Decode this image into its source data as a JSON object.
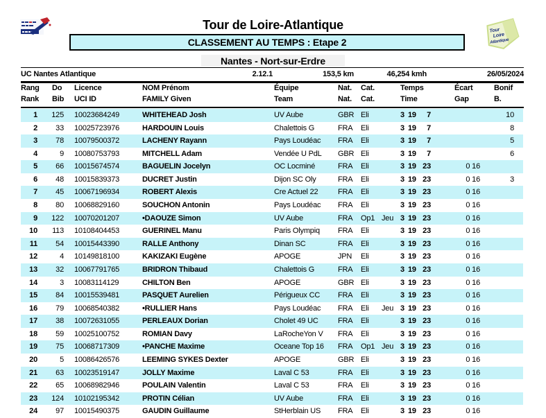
{
  "colors": {
    "accent_cyan": "#c7f3f9",
    "logo_navy": "#1b2f7e",
    "logo_red": "#c0242c",
    "logo_green": "#cadd8a"
  },
  "header": {
    "title": "Tour de Loire-Atlantique",
    "banner": "CLASSEMENT AU TEMPS : Etape 2",
    "stage": "Nantes - Nort-sur-Erdre",
    "organizer": "UC Nantes Atlantique",
    "code": "2.12.1",
    "distance": "153,5 km",
    "speed": "46,254 kmh",
    "date": "26/05/2024",
    "logo_left_icon": "federation-flag-pen-icon",
    "logo_right": {
      "icon": "race-map-icon",
      "line1": "Tour",
      "line2": "Loire",
      "line3": "Atlantique"
    }
  },
  "table": {
    "columns": [
      {
        "l1": "Rang",
        "l2": "Rank"
      },
      {
        "l1": "Do",
        "l2": "Bib"
      },
      {
        "l1": "Licence",
        "l2": "UCI ID"
      },
      {
        "l1": "NOM Prénom",
        "l2": "FAMILY Given"
      },
      {
        "l1": "Équipe",
        "l2": "Team"
      },
      {
        "l1": "Nat.",
        "l2": "Nat."
      },
      {
        "l1": "Cat.",
        "l2": "Cat."
      },
      {
        "l1": "Temps",
        "l2": "Time"
      },
      {
        "l1": "Écart",
        "l2": "Gap"
      },
      {
        "l1": "Bonif",
        "l2": "B."
      }
    ],
    "rows": [
      {
        "rank": "1",
        "bib": "125",
        "licence": "10023684249",
        "name": "WHITEHEAD Josh",
        "team": "UV Aube",
        "nat": "GBR",
        "cat": "Eli",
        "cat2": "",
        "h": "3",
        "m": "19",
        "s": "7",
        "gap": "",
        "bonif": "10"
      },
      {
        "rank": "2",
        "bib": "33",
        "licence": "10025723976",
        "name": "HARDOUIN Louis",
        "team": "Chalettois G",
        "nat": "FRA",
        "cat": "Eli",
        "cat2": "",
        "h": "3",
        "m": "19",
        "s": "7",
        "gap": "",
        "bonif": "8"
      },
      {
        "rank": "3",
        "bib": "78",
        "licence": "10079500372",
        "name": "LACHENY Rayann",
        "team": "Pays Loudéac",
        "nat": "FRA",
        "cat": "Eli",
        "cat2": "",
        "h": "3",
        "m": "19",
        "s": "7",
        "gap": "",
        "bonif": "5"
      },
      {
        "rank": "4",
        "bib": "9",
        "licence": "10080753793",
        "name": "MITCHELL Adam",
        "team": "Vendée U PdL",
        "nat": "GBR",
        "cat": "Eli",
        "cat2": "",
        "h": "3",
        "m": "19",
        "s": "7",
        "gap": "",
        "bonif": "6"
      },
      {
        "rank": "5",
        "bib": "66",
        "licence": "10015674574",
        "name": "BAGUELIN Jocelyn",
        "team": "OC Locminé",
        "nat": "FRA",
        "cat": "Eli",
        "cat2": "",
        "h": "3",
        "m": "19",
        "s": "23",
        "gap": "0 16",
        "bonif": ""
      },
      {
        "rank": "6",
        "bib": "48",
        "licence": "10015839373",
        "name": "DUCRET Justin",
        "team": "Dijon SC Oly",
        "nat": "FRA",
        "cat": "Eli",
        "cat2": "",
        "h": "3",
        "m": "19",
        "s": "23",
        "gap": "0 16",
        "bonif": "3"
      },
      {
        "rank": "7",
        "bib": "45",
        "licence": "10067196934",
        "name": "ROBERT Alexis",
        "team": "Cre Actuel 22",
        "nat": "FRA",
        "cat": "Eli",
        "cat2": "",
        "h": "3",
        "m": "19",
        "s": "23",
        "gap": "0 16",
        "bonif": ""
      },
      {
        "rank": "8",
        "bib": "80",
        "licence": "10068829160",
        "name": "SOUCHON Antonin",
        "team": "Pays Loudéac",
        "nat": "FRA",
        "cat": "Eli",
        "cat2": "",
        "h": "3",
        "m": "19",
        "s": "23",
        "gap": "0 16",
        "bonif": ""
      },
      {
        "rank": "9",
        "bib": "122",
        "licence": "10070201207",
        "name": "•DAOUZE Simon",
        "team": "UV Aube",
        "nat": "FRA",
        "cat": "Op1",
        "cat2": "Jeu",
        "h": "3",
        "m": "19",
        "s": "23",
        "gap": "0 16",
        "bonif": ""
      },
      {
        "rank": "10",
        "bib": "113",
        "licence": "10108404453",
        "name": "GUERINEL Manu",
        "team": "Paris Olympiq",
        "nat": "FRA",
        "cat": "Eli",
        "cat2": "",
        "h": "3",
        "m": "19",
        "s": "23",
        "gap": "0 16",
        "bonif": ""
      },
      {
        "rank": "11",
        "bib": "54",
        "licence": "10015443390",
        "name": "RALLE Anthony",
        "team": "Dinan SC",
        "nat": "FRA",
        "cat": "Eli",
        "cat2": "",
        "h": "3",
        "m": "19",
        "s": "23",
        "gap": "0 16",
        "bonif": ""
      },
      {
        "rank": "12",
        "bib": "4",
        "licence": "10149818100",
        "name": "KAKIZAKI Eugène",
        "team": "APOGE",
        "nat": "JPN",
        "cat": "Eli",
        "cat2": "",
        "h": "3",
        "m": "19",
        "s": "23",
        "gap": "0 16",
        "bonif": ""
      },
      {
        "rank": "13",
        "bib": "32",
        "licence": "10067791765",
        "name": "BRIDRON Thibaud",
        "team": "Chalettois G",
        "nat": "FRA",
        "cat": "Eli",
        "cat2": "",
        "h": "3",
        "m": "19",
        "s": "23",
        "gap": "0 16",
        "bonif": ""
      },
      {
        "rank": "14",
        "bib": "3",
        "licence": "10083114129",
        "name": "CHILTON Ben",
        "team": "APOGE",
        "nat": "GBR",
        "cat": "Eli",
        "cat2": "",
        "h": "3",
        "m": "19",
        "s": "23",
        "gap": "0 16",
        "bonif": ""
      },
      {
        "rank": "15",
        "bib": "84",
        "licence": "10015539481",
        "name": "PASQUET Aurelien",
        "team": "Périgueux CC",
        "nat": "FRA",
        "cat": "Eli",
        "cat2": "",
        "h": "3",
        "m": "19",
        "s": "23",
        "gap": "0 16",
        "bonif": ""
      },
      {
        "rank": "16",
        "bib": "79",
        "licence": "10068540382",
        "name": "•RULLIER Hans",
        "team": "Pays Loudéac",
        "nat": "FRA",
        "cat": "Eli",
        "cat2": "Jeu",
        "h": "3",
        "m": "19",
        "s": "23",
        "gap": "0 16",
        "bonif": ""
      },
      {
        "rank": "17",
        "bib": "38",
        "licence": "10072631055",
        "name": "PERLEAUX Dorian",
        "team": "Cholet 49 UC",
        "nat": "FRA",
        "cat": "Eli",
        "cat2": "",
        "h": "3",
        "m": "19",
        "s": "23",
        "gap": "0 16",
        "bonif": ""
      },
      {
        "rank": "18",
        "bib": "59",
        "licence": "10025100752",
        "name": "ROMIAN Davy",
        "team": "LaRocheYon V",
        "nat": "FRA",
        "cat": "Eli",
        "cat2": "",
        "h": "3",
        "m": "19",
        "s": "23",
        "gap": "0 16",
        "bonif": ""
      },
      {
        "rank": "19",
        "bib": "75",
        "licence": "10068717309",
        "name": "•PANCHE Maxime",
        "team": "Oceane Top 16",
        "nat": "FRA",
        "cat": "Op1",
        "cat2": "Jeu",
        "h": "3",
        "m": "19",
        "s": "23",
        "gap": "0 16",
        "bonif": ""
      },
      {
        "rank": "20",
        "bib": "5",
        "licence": "10086426576",
        "name": "LEEMING SYKES Dexter",
        "team": "APOGE",
        "nat": "GBR",
        "cat": "Eli",
        "cat2": "",
        "h": "3",
        "m": "19",
        "s": "23",
        "gap": "0 16",
        "bonif": ""
      },
      {
        "rank": "21",
        "bib": "63",
        "licence": "10023519147",
        "name": "JOLLY Maxime",
        "team": "Laval C 53",
        "nat": "FRA",
        "cat": "Eli",
        "cat2": "",
        "h": "3",
        "m": "19",
        "s": "23",
        "gap": "0 16",
        "bonif": ""
      },
      {
        "rank": "22",
        "bib": "65",
        "licence": "10068982946",
        "name": "POULAIN Valentin",
        "team": "Laval C 53",
        "nat": "FRA",
        "cat": "Eli",
        "cat2": "",
        "h": "3",
        "m": "19",
        "s": "23",
        "gap": "0 16",
        "bonif": ""
      },
      {
        "rank": "23",
        "bib": "124",
        "licence": "10102195342",
        "name": "PROTIN Célian",
        "team": "UV Aube",
        "nat": "FRA",
        "cat": "Eli",
        "cat2": "",
        "h": "3",
        "m": "19",
        "s": "23",
        "gap": "0 16",
        "bonif": ""
      },
      {
        "rank": "24",
        "bib": "97",
        "licence": "10015490375",
        "name": "GAUDIN Guillaume",
        "team": "StHerblain US",
        "nat": "FRA",
        "cat": "Eli",
        "cat2": "",
        "h": "3",
        "m": "19",
        "s": "23",
        "gap": "0 16",
        "bonif": ""
      }
    ]
  }
}
